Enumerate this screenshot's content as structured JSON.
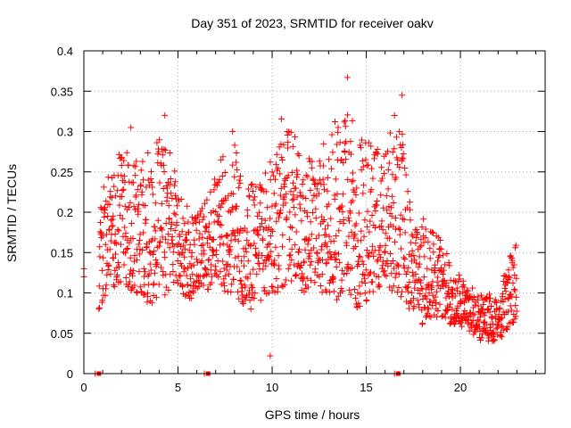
{
  "chart_data": {
    "type": "scatter",
    "title": "Day 351 of 2023, SRMTID for receiver oakv",
    "xlabel": "GPS time / hours",
    "ylabel": "SRMTID / TECUs",
    "xlim": [
      0,
      24.5
    ],
    "ylim": [
      0,
      0.4
    ],
    "grid": true,
    "marker": "plus",
    "color": "#ff0000",
    "x_ticks": [
      0,
      5,
      10,
      15,
      20
    ],
    "x_tick_labels": [
      "0",
      "5",
      "10",
      "15",
      "20"
    ],
    "y_ticks": [
      0,
      0.05,
      0.1,
      0.15,
      0.2,
      0.25,
      0.3,
      0.35,
      0.4
    ],
    "y_tick_labels": [
      "0",
      "0.05",
      "0.1",
      "0.15",
      "0.2",
      "0.25",
      "0.3",
      "0.35",
      "0.4"
    ],
    "envelope": {
      "x": [
        0.0,
        0.8,
        1.0,
        1.5,
        2.0,
        2.5,
        3.0,
        3.5,
        4.0,
        4.5,
        5.0,
        5.5,
        6.0,
        6.5,
        7.0,
        7.5,
        8.0,
        8.5,
        9.0,
        9.5,
        10.0,
        10.5,
        11.0,
        11.5,
        12.0,
        12.5,
        13.0,
        13.5,
        14.0,
        14.5,
        15.0,
        15.5,
        16.0,
        16.5,
        17.0,
        17.5,
        18.0,
        18.5,
        19.0,
        19.5,
        20.0,
        20.5,
        21.0,
        21.5,
        22.0,
        22.5,
        23.0
      ],
      "low": [
        0.12,
        0.08,
        0.09,
        0.1,
        0.11,
        0.1,
        0.1,
        0.08,
        0.09,
        0.1,
        0.11,
        0.09,
        0.09,
        0.1,
        0.12,
        0.1,
        0.1,
        0.08,
        0.08,
        0.09,
        0.1,
        0.1,
        0.11,
        0.1,
        0.1,
        0.1,
        0.1,
        0.09,
        0.1,
        0.08,
        0.09,
        0.1,
        0.11,
        0.1,
        0.09,
        0.07,
        0.06,
        0.06,
        0.07,
        0.06,
        0.05,
        0.05,
        0.04,
        0.04,
        0.04,
        0.05,
        0.07
      ],
      "high": [
        0.12,
        0.24,
        0.26,
        0.25,
        0.28,
        0.27,
        0.26,
        0.28,
        0.3,
        0.28,
        0.24,
        0.22,
        0.2,
        0.22,
        0.25,
        0.28,
        0.29,
        0.23,
        0.24,
        0.24,
        0.27,
        0.32,
        0.31,
        0.27,
        0.27,
        0.28,
        0.3,
        0.32,
        0.35,
        0.3,
        0.29,
        0.28,
        0.27,
        0.33,
        0.3,
        0.18,
        0.2,
        0.18,
        0.17,
        0.14,
        0.12,
        0.11,
        0.1,
        0.1,
        0.09,
        0.14,
        0.17
      ]
    },
    "zero_markers": [
      0.8,
      6.6,
      16.7
    ]
  }
}
